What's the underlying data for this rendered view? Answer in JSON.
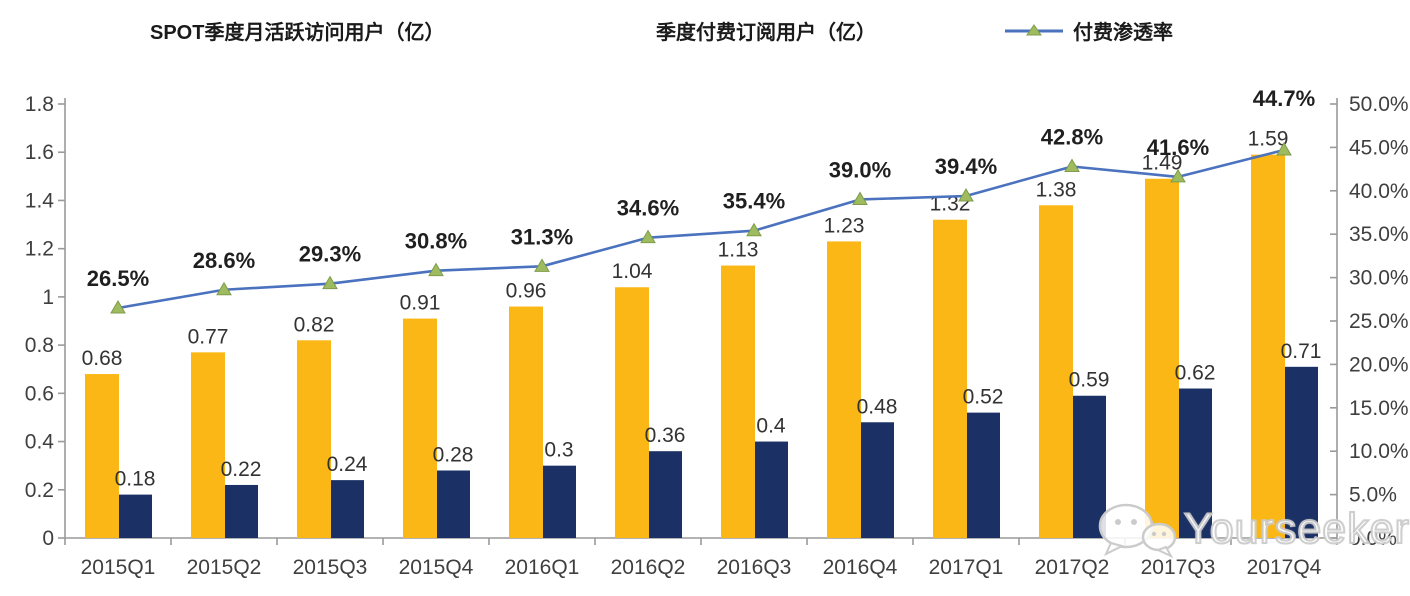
{
  "legend": {
    "mau_label": "SPOT季度月活跃访问用户（亿）",
    "subs_label": "季度付费订阅用户（亿）",
    "penetration_label": "付费渗透率"
  },
  "watermark": {
    "text": "Yourseeker"
  },
  "colors": {
    "mau_bar": "#FBB715",
    "subs_bar": "#1B3064",
    "line": "#4A72BE",
    "marker_fill": "#9EBB5F",
    "marker_stroke": "#7E9C4B",
    "axis_line": "#9A9A9A",
    "tick_text": "#3F3F3F",
    "bar_label_text": "#333333",
    "pct_label_text": "#1F1F1F"
  },
  "chart_data": {
    "type": "bar+line combo",
    "categories": [
      "2015Q1",
      "2015Q2",
      "2015Q3",
      "2015Q4",
      "2016Q1",
      "2016Q2",
      "2016Q3",
      "2016Q4",
      "2017Q1",
      "2017Q2",
      "2017Q3",
      "2017Q4"
    ],
    "series": [
      {
        "name": "SPOT季度月活跃访问用户（亿）",
        "type": "bar",
        "axis": "left",
        "values": [
          0.68,
          0.77,
          0.82,
          0.91,
          0.96,
          1.04,
          1.13,
          1.23,
          1.32,
          1.38,
          1.49,
          1.59
        ],
        "labels": [
          "0.68",
          "0.77",
          "0.82",
          "0.91",
          "0.96",
          "1.04",
          "1.13",
          "1.23",
          "1.32",
          "1.38",
          "1.49",
          "1.59"
        ]
      },
      {
        "name": "季度付费订阅用户（亿）",
        "type": "bar",
        "axis": "left",
        "values": [
          0.18,
          0.22,
          0.24,
          0.28,
          0.3,
          0.36,
          0.4,
          0.48,
          0.52,
          0.59,
          0.62,
          0.71
        ],
        "labels": [
          "0.18",
          "0.22",
          "0.24",
          "0.28",
          "0.3",
          "0.36",
          "0.4",
          "0.48",
          "0.52",
          "0.59",
          "0.62",
          "0.71"
        ]
      },
      {
        "name": "付费渗透率",
        "type": "line",
        "axis": "right",
        "values": [
          26.5,
          28.6,
          29.3,
          30.8,
          31.3,
          34.6,
          35.4,
          39.0,
          39.4,
          42.8,
          41.6,
          44.7
        ],
        "labels": [
          "26.5%",
          "28.6%",
          "29.3%",
          "30.8%",
          "31.3%",
          "34.6%",
          "35.4%",
          "39.0%",
          "39.4%",
          "42.8%",
          "41.6%",
          "44.7%"
        ]
      }
    ],
    "left_axis": {
      "min": 0,
      "max": 1.8,
      "ticks": [
        "0",
        "0.2",
        "0.4",
        "0.6",
        "0.8",
        "1",
        "1.2",
        "1.4",
        "1.6",
        "1.8"
      ]
    },
    "right_axis": {
      "min": 0,
      "max": 50,
      "ticks": [
        "0.0%",
        "5.0%",
        "10.0%",
        "15.0%",
        "20.0%",
        "25.0%",
        "30.0%",
        "35.0%",
        "40.0%",
        "45.0%",
        "50.0%"
      ]
    },
    "grid": "off",
    "legend_position": "top"
  }
}
